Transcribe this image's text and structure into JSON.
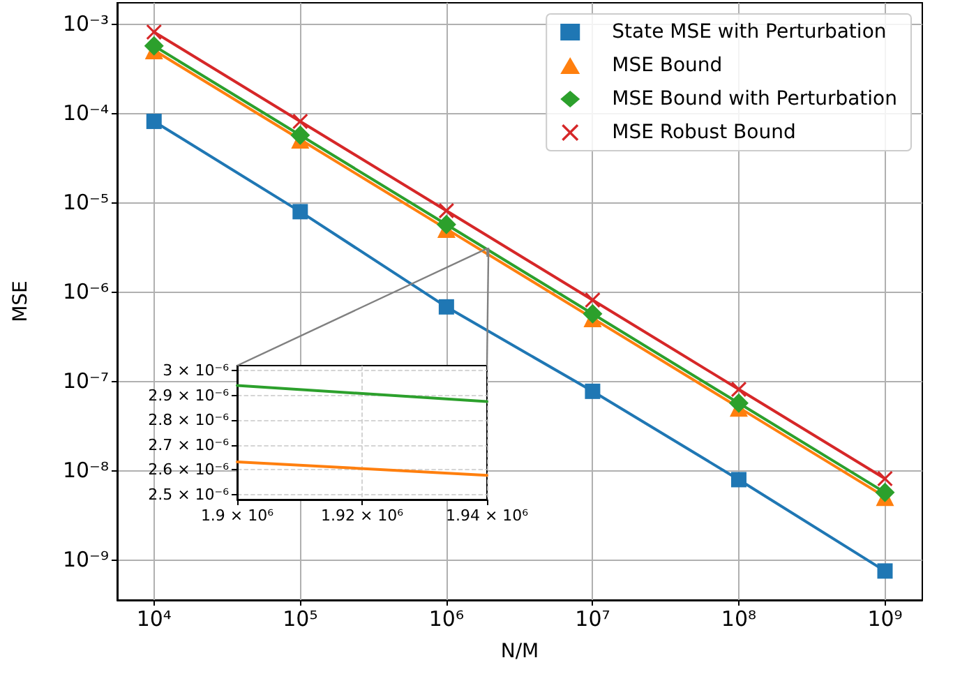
{
  "chart_data": [
    {
      "type": "line",
      "xlabel": "N/M",
      "ylabel": "MSE",
      "log": "xy",
      "grid": true,
      "legend": "top right",
      "x": [
        10000,
        100000,
        1000000,
        10000000,
        100000000,
        1000000000
      ],
      "xlim": [
        5600,
        1800000000
      ],
      "ylim": [
        3.5e-10,
        0.0017
      ],
      "xticks": [
        {
          "value": 10000,
          "label": "10⁴"
        },
        {
          "value": 100000,
          "label": "10⁵"
        },
        {
          "value": 1000000,
          "label": "10⁶"
        },
        {
          "value": 10000000,
          "label": "10⁷"
        },
        {
          "value": 100000000,
          "label": "10⁸"
        },
        {
          "value": 1000000000,
          "label": "10⁹"
        }
      ],
      "yticks": [
        {
          "value": 1e-09,
          "label": "10⁻⁹"
        },
        {
          "value": 1e-08,
          "label": "10⁻⁸"
        },
        {
          "value": 1e-07,
          "label": "10⁻⁷"
        },
        {
          "value": 1e-06,
          "label": "10⁻⁶"
        },
        {
          "value": 1e-05,
          "label": "10⁻⁵"
        },
        {
          "value": 0.0001,
          "label": "10⁻⁴"
        },
        {
          "value": 0.001,
          "label": "10⁻³"
        }
      ],
      "series": [
        {
          "name": "State MSE with Perturbation",
          "color": "#1f77b4",
          "marker": "square",
          "values": [
            8e-05,
            7.8e-06,
            6.7e-07,
            7.6e-08,
            7.8e-09,
            7.4e-10
          ]
        },
        {
          "name": "MSE Bound",
          "color": "#ff7f0e",
          "marker": "triangle",
          "values": [
            0.0005,
            5e-05,
            5e-06,
            5e-07,
            5e-08,
            5e-09
          ]
        },
        {
          "name": "MSE Bound with Perturbation",
          "color": "#2ca02c",
          "marker": "diamond",
          "values": [
            0.00056,
            5.6e-05,
            5.6e-06,
            5.6e-07,
            5.6e-08,
            5.6e-09
          ]
        },
        {
          "name": "MSE Robust Bound",
          "color": "#d62728",
          "marker": "cross",
          "values": [
            0.0008,
            8e-05,
            8e-06,
            8e-07,
            8e-08,
            8e-09
          ]
        }
      ]
    },
    {
      "type": "line",
      "grid": true,
      "marker": "none",
      "x": [
        1900000,
        1940000
      ],
      "xlim": [
        1900000,
        1940000
      ],
      "ylim": [
        2.48e-06,
        3.02e-06
      ],
      "xticks": [
        {
          "value": 1900000,
          "label": "1.9 × 10⁶"
        },
        {
          "value": 1920000,
          "label": "1.92 × 10⁶"
        },
        {
          "value": 1940000,
          "label": "1.94 × 10⁶"
        }
      ],
      "yticks": [
        {
          "value": 2.5e-06,
          "label": "2.5 × 10⁻⁶"
        },
        {
          "value": 2.6e-06,
          "label": "2.6 × 10⁻⁶"
        },
        {
          "value": 2.7e-06,
          "label": "2.7 × 10⁻⁶"
        },
        {
          "value": 2.8e-06,
          "label": "2.8 × 10⁻⁶"
        },
        {
          "value": 2.9e-06,
          "label": "2.9 × 10⁻⁶"
        },
        {
          "value": 3e-06,
          "label": "3 × 10⁻⁶"
        }
      ],
      "series": [
        {
          "color": "#ff7f0e",
          "values": [
            2.632e-06,
            2.578e-06
          ]
        },
        {
          "color": "#2ca02c",
          "values": [
            2.94e-06,
            2.875e-06
          ]
        }
      ]
    }
  ]
}
